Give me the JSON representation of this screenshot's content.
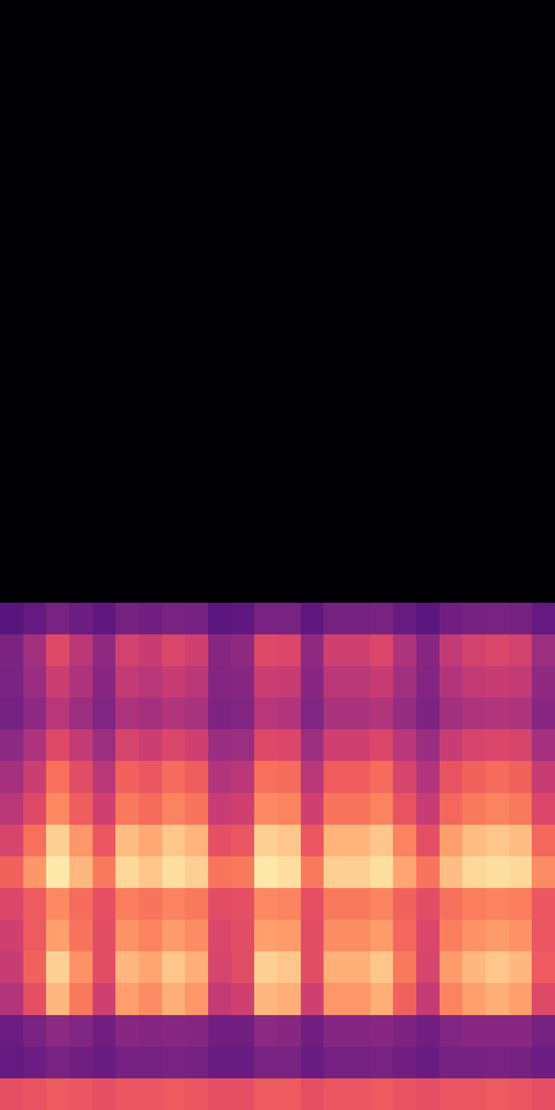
{
  "chart_data": {
    "type": "heatmap",
    "color": "magma",
    "zlim": [
      0,
      1
    ],
    "tick_labels": false,
    "xlim": [
      0,
      24
    ],
    "ylim": [
      0,
      140
    ],
    "x_bins": [
      0,
      1,
      2,
      3,
      4,
      5,
      6,
      7,
      8,
      9,
      10,
      11,
      12,
      13,
      14,
      15,
      16,
      17,
      18,
      19,
      20,
      21,
      22,
      23,
      24
    ],
    "y_bins": [
      0,
      4,
      8,
      12,
      16,
      20,
      24,
      28,
      32,
      36,
      40,
      44,
      48,
      52,
      56,
      60,
      64,
      140
    ],
    "values": [
      [
        0.62,
        0.63,
        0.65,
        0.64,
        0.62,
        0.64,
        0.64,
        0.65,
        0.64,
        0.62,
        0.62,
        0.65,
        0.65,
        0.62,
        0.64,
        0.64,
        0.65,
        0.63,
        0.62,
        0.64,
        0.64,
        0.65,
        0.64,
        0.62
      ],
      [
        0.3,
        0.32,
        0.35,
        0.33,
        0.31,
        0.34,
        0.34,
        0.35,
        0.34,
        0.31,
        0.31,
        0.35,
        0.35,
        0.31,
        0.34,
        0.34,
        0.35,
        0.33,
        0.31,
        0.34,
        0.34,
        0.35,
        0.34,
        0.32
      ],
      [
        0.32,
        0.35,
        0.4,
        0.37,
        0.33,
        0.39,
        0.38,
        0.39,
        0.38,
        0.33,
        0.33,
        0.4,
        0.39,
        0.33,
        0.38,
        0.38,
        0.39,
        0.36,
        0.33,
        0.37,
        0.39,
        0.39,
        0.39,
        0.34
      ],
      [
        0.49,
        0.62,
        0.85,
        0.72,
        0.56,
        0.8,
        0.76,
        0.83,
        0.78,
        0.53,
        0.56,
        0.85,
        0.83,
        0.56,
        0.78,
        0.78,
        0.83,
        0.67,
        0.53,
        0.74,
        0.8,
        0.83,
        0.8,
        0.6
      ],
      [
        0.54,
        0.67,
        0.9,
        0.77,
        0.61,
        0.85,
        0.81,
        0.88,
        0.83,
        0.58,
        0.61,
        0.9,
        0.88,
        0.61,
        0.83,
        0.83,
        0.88,
        0.72,
        0.58,
        0.79,
        0.85,
        0.88,
        0.85,
        0.65
      ],
      [
        0.56,
        0.65,
        0.8,
        0.71,
        0.61,
        0.77,
        0.74,
        0.79,
        0.76,
        0.59,
        0.61,
        0.8,
        0.79,
        0.61,
        0.76,
        0.76,
        0.79,
        0.68,
        0.59,
        0.73,
        0.77,
        0.79,
        0.77,
        0.64
      ],
      [
        0.59,
        0.65,
        0.75,
        0.69,
        0.62,
        0.73,
        0.71,
        0.74,
        0.72,
        0.61,
        0.62,
        0.75,
        0.74,
        0.62,
        0.72,
        0.72,
        0.74,
        0.67,
        0.61,
        0.7,
        0.73,
        0.74,
        0.73,
        0.64
      ],
      [
        0.67,
        0.78,
        0.95,
        0.85,
        0.72,
        0.92,
        0.88,
        0.93,
        0.9,
        0.71,
        0.72,
        0.95,
        0.93,
        0.72,
        0.9,
        0.9,
        0.93,
        0.81,
        0.71,
        0.86,
        0.92,
        0.93,
        0.92,
        0.76
      ],
      [
        0.58,
        0.7,
        0.9,
        0.78,
        0.64,
        0.86,
        0.82,
        0.88,
        0.84,
        0.62,
        0.64,
        0.9,
        0.88,
        0.64,
        0.84,
        0.84,
        0.88,
        0.74,
        0.62,
        0.8,
        0.86,
        0.88,
        0.86,
        0.68
      ],
      [
        0.51,
        0.6,
        0.75,
        0.66,
        0.56,
        0.72,
        0.69,
        0.74,
        0.71,
        0.54,
        0.56,
        0.75,
        0.74,
        0.56,
        0.71,
        0.71,
        0.74,
        0.63,
        0.54,
        0.68,
        0.72,
        0.74,
        0.72,
        0.59
      ],
      [
        0.46,
        0.55,
        0.7,
        0.61,
        0.51,
        0.67,
        0.64,
        0.69,
        0.66,
        0.49,
        0.51,
        0.7,
        0.69,
        0.51,
        0.66,
        0.66,
        0.69,
        0.58,
        0.49,
        0.63,
        0.67,
        0.69,
        0.67,
        0.54
      ],
      [
        0.4,
        0.48,
        0.6,
        0.53,
        0.44,
        0.58,
        0.55,
        0.59,
        0.56,
        0.43,
        0.44,
        0.6,
        0.59,
        0.44,
        0.56,
        0.56,
        0.59,
        0.5,
        0.43,
        0.54,
        0.58,
        0.59,
        0.58,
        0.46
      ],
      [
        0.34,
        0.4,
        0.5,
        0.44,
        0.37,
        0.48,
        0.46,
        0.49,
        0.47,
        0.36,
        0.37,
        0.5,
        0.49,
        0.37,
        0.47,
        0.47,
        0.49,
        0.42,
        0.36,
        0.45,
        0.48,
        0.49,
        0.48,
        0.39
      ],
      [
        0.35,
        0.43,
        0.55,
        0.48,
        0.39,
        0.53,
        0.5,
        0.54,
        0.51,
        0.38,
        0.39,
        0.55,
        0.54,
        0.39,
        0.51,
        0.51,
        0.54,
        0.45,
        0.38,
        0.49,
        0.53,
        0.54,
        0.53,
        0.41
      ],
      [
        0.36,
        0.45,
        0.6,
        0.51,
        0.41,
        0.57,
        0.54,
        0.59,
        0.56,
        0.39,
        0.41,
        0.6,
        0.59,
        0.41,
        0.56,
        0.56,
        0.59,
        0.48,
        0.39,
        0.53,
        0.57,
        0.59,
        0.57,
        0.44
      ],
      [
        0.27,
        0.3,
        0.35,
        0.32,
        0.29,
        0.34,
        0.33,
        0.35,
        0.34,
        0.28,
        0.29,
        0.35,
        0.35,
        0.29,
        0.34,
        0.34,
        0.35,
        0.31,
        0.28,
        0.33,
        0.34,
        0.35,
        0.34,
        0.3
      ],
      [
        0,
        0,
        0,
        0,
        0,
        0,
        0,
        0,
        0,
        0,
        0,
        0,
        0,
        0,
        0,
        0,
        0,
        0,
        0,
        0,
        0,
        0,
        0,
        0
      ]
    ]
  }
}
